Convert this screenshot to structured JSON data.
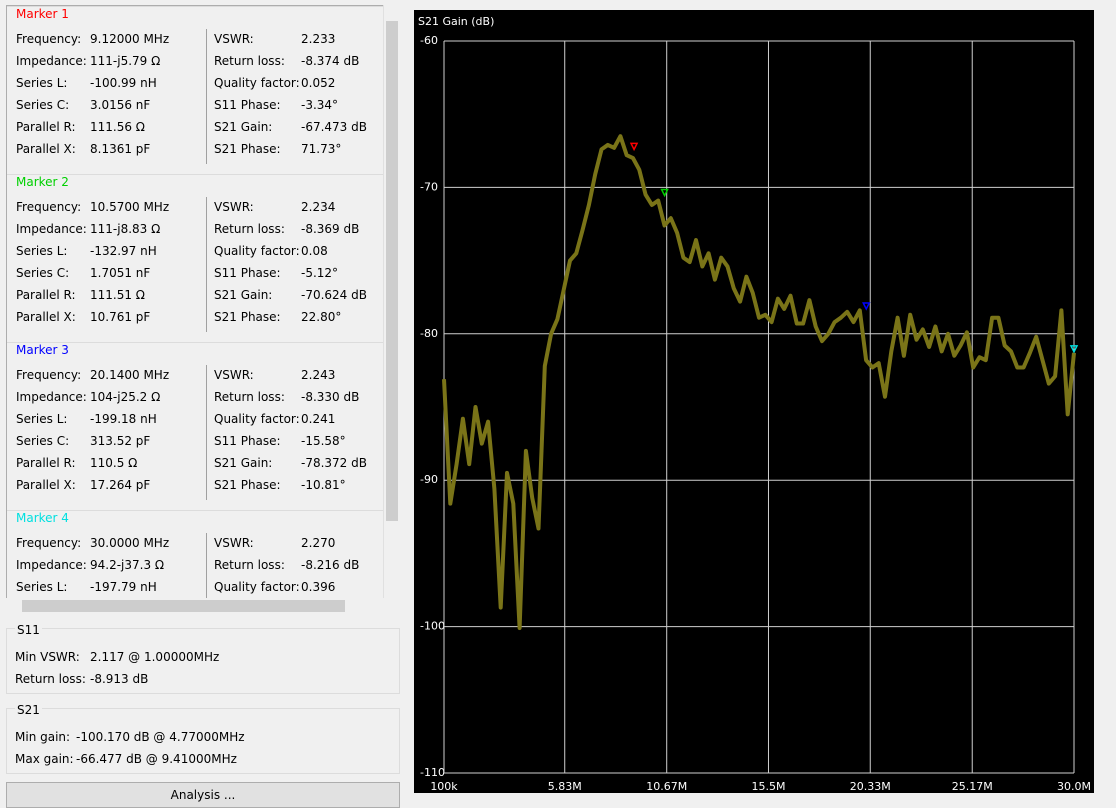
{
  "markers": [
    {
      "title": "Marker 1",
      "color": "#ff0000",
      "left": [
        [
          "Frequency:",
          "9.12000 MHz"
        ],
        [
          "Impedance:",
          "111-j5.79 Ω"
        ],
        [
          "Series L:",
          "-100.99 nH"
        ],
        [
          "Series C:",
          "3.0156 nF"
        ],
        [
          "Parallel R:",
          "111.56 Ω"
        ],
        [
          "Parallel X:",
          "8.1361 pF"
        ]
      ],
      "right": [
        [
          "VSWR:",
          "2.233"
        ],
        [
          "Return loss:",
          "-8.374 dB"
        ],
        [
          "Quality factor:",
          "0.052"
        ],
        [
          "S11 Phase:",
          "-3.34°"
        ],
        [
          "S21 Gain:",
          "-67.473 dB"
        ],
        [
          "S21 Phase:",
          "71.73°"
        ]
      ]
    },
    {
      "title": "Marker 2",
      "color": "#00d000",
      "left": [
        [
          "Frequency:",
          "10.5700 MHz"
        ],
        [
          "Impedance:",
          "111-j8.83 Ω"
        ],
        [
          "Series L:",
          "-132.97 nH"
        ],
        [
          "Series C:",
          "1.7051 nF"
        ],
        [
          "Parallel R:",
          "111.51 Ω"
        ],
        [
          "Parallel X:",
          "10.761 pF"
        ]
      ],
      "right": [
        [
          "VSWR:",
          "2.234"
        ],
        [
          "Return loss:",
          "-8.369 dB"
        ],
        [
          "Quality factor:",
          "0.08"
        ],
        [
          "S11 Phase:",
          "-5.12°"
        ],
        [
          "S21 Gain:",
          "-70.624 dB"
        ],
        [
          "S21 Phase:",
          "22.80°"
        ]
      ]
    },
    {
      "title": "Marker 3",
      "color": "#0000ff",
      "left": [
        [
          "Frequency:",
          "20.1400 MHz"
        ],
        [
          "Impedance:",
          "104-j25.2 Ω"
        ],
        [
          "Series L:",
          "-199.18 nH"
        ],
        [
          "Series C:",
          "313.52 pF"
        ],
        [
          "Parallel R:",
          "110.5 Ω"
        ],
        [
          "Parallel X:",
          "17.264 pF"
        ]
      ],
      "right": [
        [
          "VSWR:",
          "2.243"
        ],
        [
          "Return loss:",
          "-8.330 dB"
        ],
        [
          "Quality factor:",
          "0.241"
        ],
        [
          "S11 Phase:",
          "-15.58°"
        ],
        [
          "S21 Gain:",
          "-78.372 dB"
        ],
        [
          "S21 Phase:",
          "-10.81°"
        ]
      ]
    },
    {
      "title": "Marker 4",
      "color": "#00e0e0",
      "left": [
        [
          "Frequency:",
          "30.0000 MHz"
        ],
        [
          "Impedance:",
          "94.2-j37.3 Ω"
        ],
        [
          "Series L:",
          "-197.79 nH"
        ]
      ],
      "right": [
        [
          "VSWR:",
          "2.270"
        ],
        [
          "Return loss:",
          "-8.216 dB"
        ],
        [
          "Quality factor:",
          "0.396"
        ]
      ]
    }
  ],
  "s11": {
    "title": "S11",
    "rows": [
      [
        "Min VSWR:",
        "2.117 @ 1.00000MHz"
      ],
      [
        "Return loss:",
        "-8.913 dB"
      ]
    ]
  },
  "s21": {
    "title": "S21",
    "rows": [
      [
        "Min gain:",
        "-100.170 dB @ 4.77000MHz"
      ],
      [
        "Max gain:",
        "-66.477 dB @ 9.41000MHz"
      ]
    ]
  },
  "button": "Analysis ...",
  "chart_data": {
    "type": "line",
    "title": "S21 Gain (dB)",
    "color": "#7a7418",
    "grid": true,
    "xlim": [
      100000,
      30000000
    ],
    "ylim": [
      -110,
      -60
    ],
    "xticks": [
      {
        "value": 100000,
        "label": "100k"
      },
      {
        "value": 5830000,
        "label": "5.83M"
      },
      {
        "value": 10670000,
        "label": "10.67M"
      },
      {
        "value": 15500000,
        "label": "15.5M"
      },
      {
        "value": 20330000,
        "label": "20.33M"
      },
      {
        "value": 25170000,
        "label": "25.17M"
      },
      {
        "value": 30000000,
        "label": "30.0M"
      }
    ],
    "yticks": [
      -60,
      -70,
      -80,
      -90,
      -100,
      -110
    ],
    "x": [
      100000,
      399000,
      698000,
      997000,
      1296000,
      1595000,
      1894000,
      2193000,
      2492000,
      2791000,
      3090000,
      3389000,
      3688000,
      3987000,
      4286000,
      4585000,
      4884000,
      5183000,
      5482000,
      5781000,
      6080000,
      6379000,
      6678000,
      6977000,
      7276000,
      7575000,
      7874000,
      8173000,
      8472000,
      8771000,
      9070000,
      9369000,
      9668000,
      9967000,
      10266000,
      10565000,
      10864000,
      11163000,
      11462000,
      11761000,
      12060000,
      12359000,
      12658000,
      12957000,
      13256000,
      13555000,
      13854000,
      14153000,
      14452000,
      14751000,
      15050000,
      15349000,
      15648000,
      15947000,
      16246000,
      16545000,
      16844000,
      17143000,
      17442000,
      17741000,
      18040000,
      18339000,
      18638000,
      18937000,
      19236000,
      19535000,
      19834000,
      20133000,
      20432000,
      20731000,
      21030000,
      21329000,
      21628000,
      21927000,
      22226000,
      22525000,
      22824000,
      23123000,
      23422000,
      23721000,
      24020000,
      24319000,
      24618000,
      24917000,
      25216000,
      25515000,
      25814000,
      26113000,
      26412000,
      26711000,
      27010000,
      27309000,
      27608000,
      27907000,
      28206000,
      28505000,
      28804000,
      29103000,
      29402000,
      29701000,
      30000000
    ],
    "values": [
      -83.1,
      -91.6,
      -88.9,
      -85.8,
      -88.9,
      -85.0,
      -87.5,
      -86.0,
      -90.6,
      -98.7,
      -89.5,
      -91.6,
      -100.1,
      -88.0,
      -91.2,
      -93.3,
      -82.2,
      -80.0,
      -79.0,
      -77.0,
      -75.0,
      -74.5,
      -72.9,
      -71.2,
      -69.1,
      -67.4,
      -67.1,
      -67.3,
      -66.5,
      -67.8,
      -68.0,
      -68.8,
      -70.5,
      -71.2,
      -70.9,
      -72.6,
      -72.1,
      -73.1,
      -74.8,
      -75.1,
      -73.6,
      -75.4,
      -74.5,
      -76.3,
      -74.8,
      -75.4,
      -76.9,
      -77.8,
      -76.1,
      -77.2,
      -78.9,
      -78.7,
      -79.2,
      -77.6,
      -78.3,
      -77.4,
      -79.3,
      -79.3,
      -77.7,
      -79.5,
      -80.5,
      -80.0,
      -79.2,
      -78.9,
      -78.5,
      -79.2,
      -78.4,
      -81.8,
      -82.3,
      -82.0,
      -84.3,
      -81.2,
      -78.9,
      -81.5,
      -78.7,
      -80.4,
      -79.7,
      -80.9,
      -79.5,
      -81.2,
      -80.0,
      -81.5,
      -80.8,
      -79.9,
      -82.3,
      -81.6,
      -81.8,
      -78.9,
      -78.9,
      -80.8,
      -81.2,
      -82.3,
      -82.3,
      -81.3,
      -80.2,
      -81.8,
      -83.4,
      -82.9,
      -78.4,
      -85.5,
      -81.3
    ],
    "markers": [
      {
        "x": 9120000,
        "y": -67.473,
        "color": "#ff0000"
      },
      {
        "x": 10570000,
        "y": -70.624,
        "color": "#00d000"
      },
      {
        "x": 20140000,
        "y": -78.372,
        "color": "#0000ff"
      },
      {
        "x": 30000000,
        "y": -81.3,
        "color": "#00e0e0"
      }
    ]
  }
}
